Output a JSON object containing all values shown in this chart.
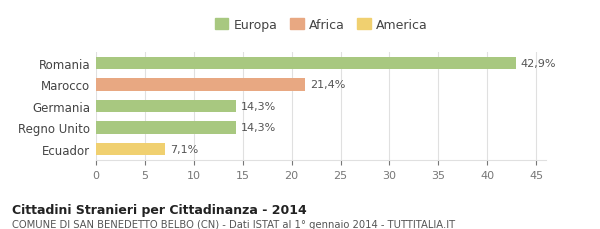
{
  "categories": [
    "Ecuador",
    "Regno Unito",
    "Germania",
    "Marocco",
    "Romania"
  ],
  "values": [
    7.1,
    14.3,
    14.3,
    21.4,
    42.9
  ],
  "labels": [
    "7,1%",
    "14,3%",
    "14,3%",
    "21,4%",
    "42,9%"
  ],
  "colors": [
    "#f0d070",
    "#a8c880",
    "#a8c880",
    "#e8a882",
    "#a8c880"
  ],
  "legend": [
    {
      "label": "Europa",
      "color": "#a8c880"
    },
    {
      "label": "Africa",
      "color": "#e8a882"
    },
    {
      "label": "America",
      "color": "#f0d070"
    }
  ],
  "xlim": [
    0,
    46
  ],
  "xticks": [
    0,
    5,
    10,
    15,
    20,
    25,
    30,
    35,
    40,
    45
  ],
  "title": "Cittadini Stranieri per Cittadinanza - 2014",
  "subtitle": "COMUNE DI SAN BENEDETTO BELBO (CN) - Dati ISTAT al 1° gennaio 2014 - TUTTITALIA.IT",
  "bg_color": "#ffffff",
  "grid_color": "#e0e0e0"
}
